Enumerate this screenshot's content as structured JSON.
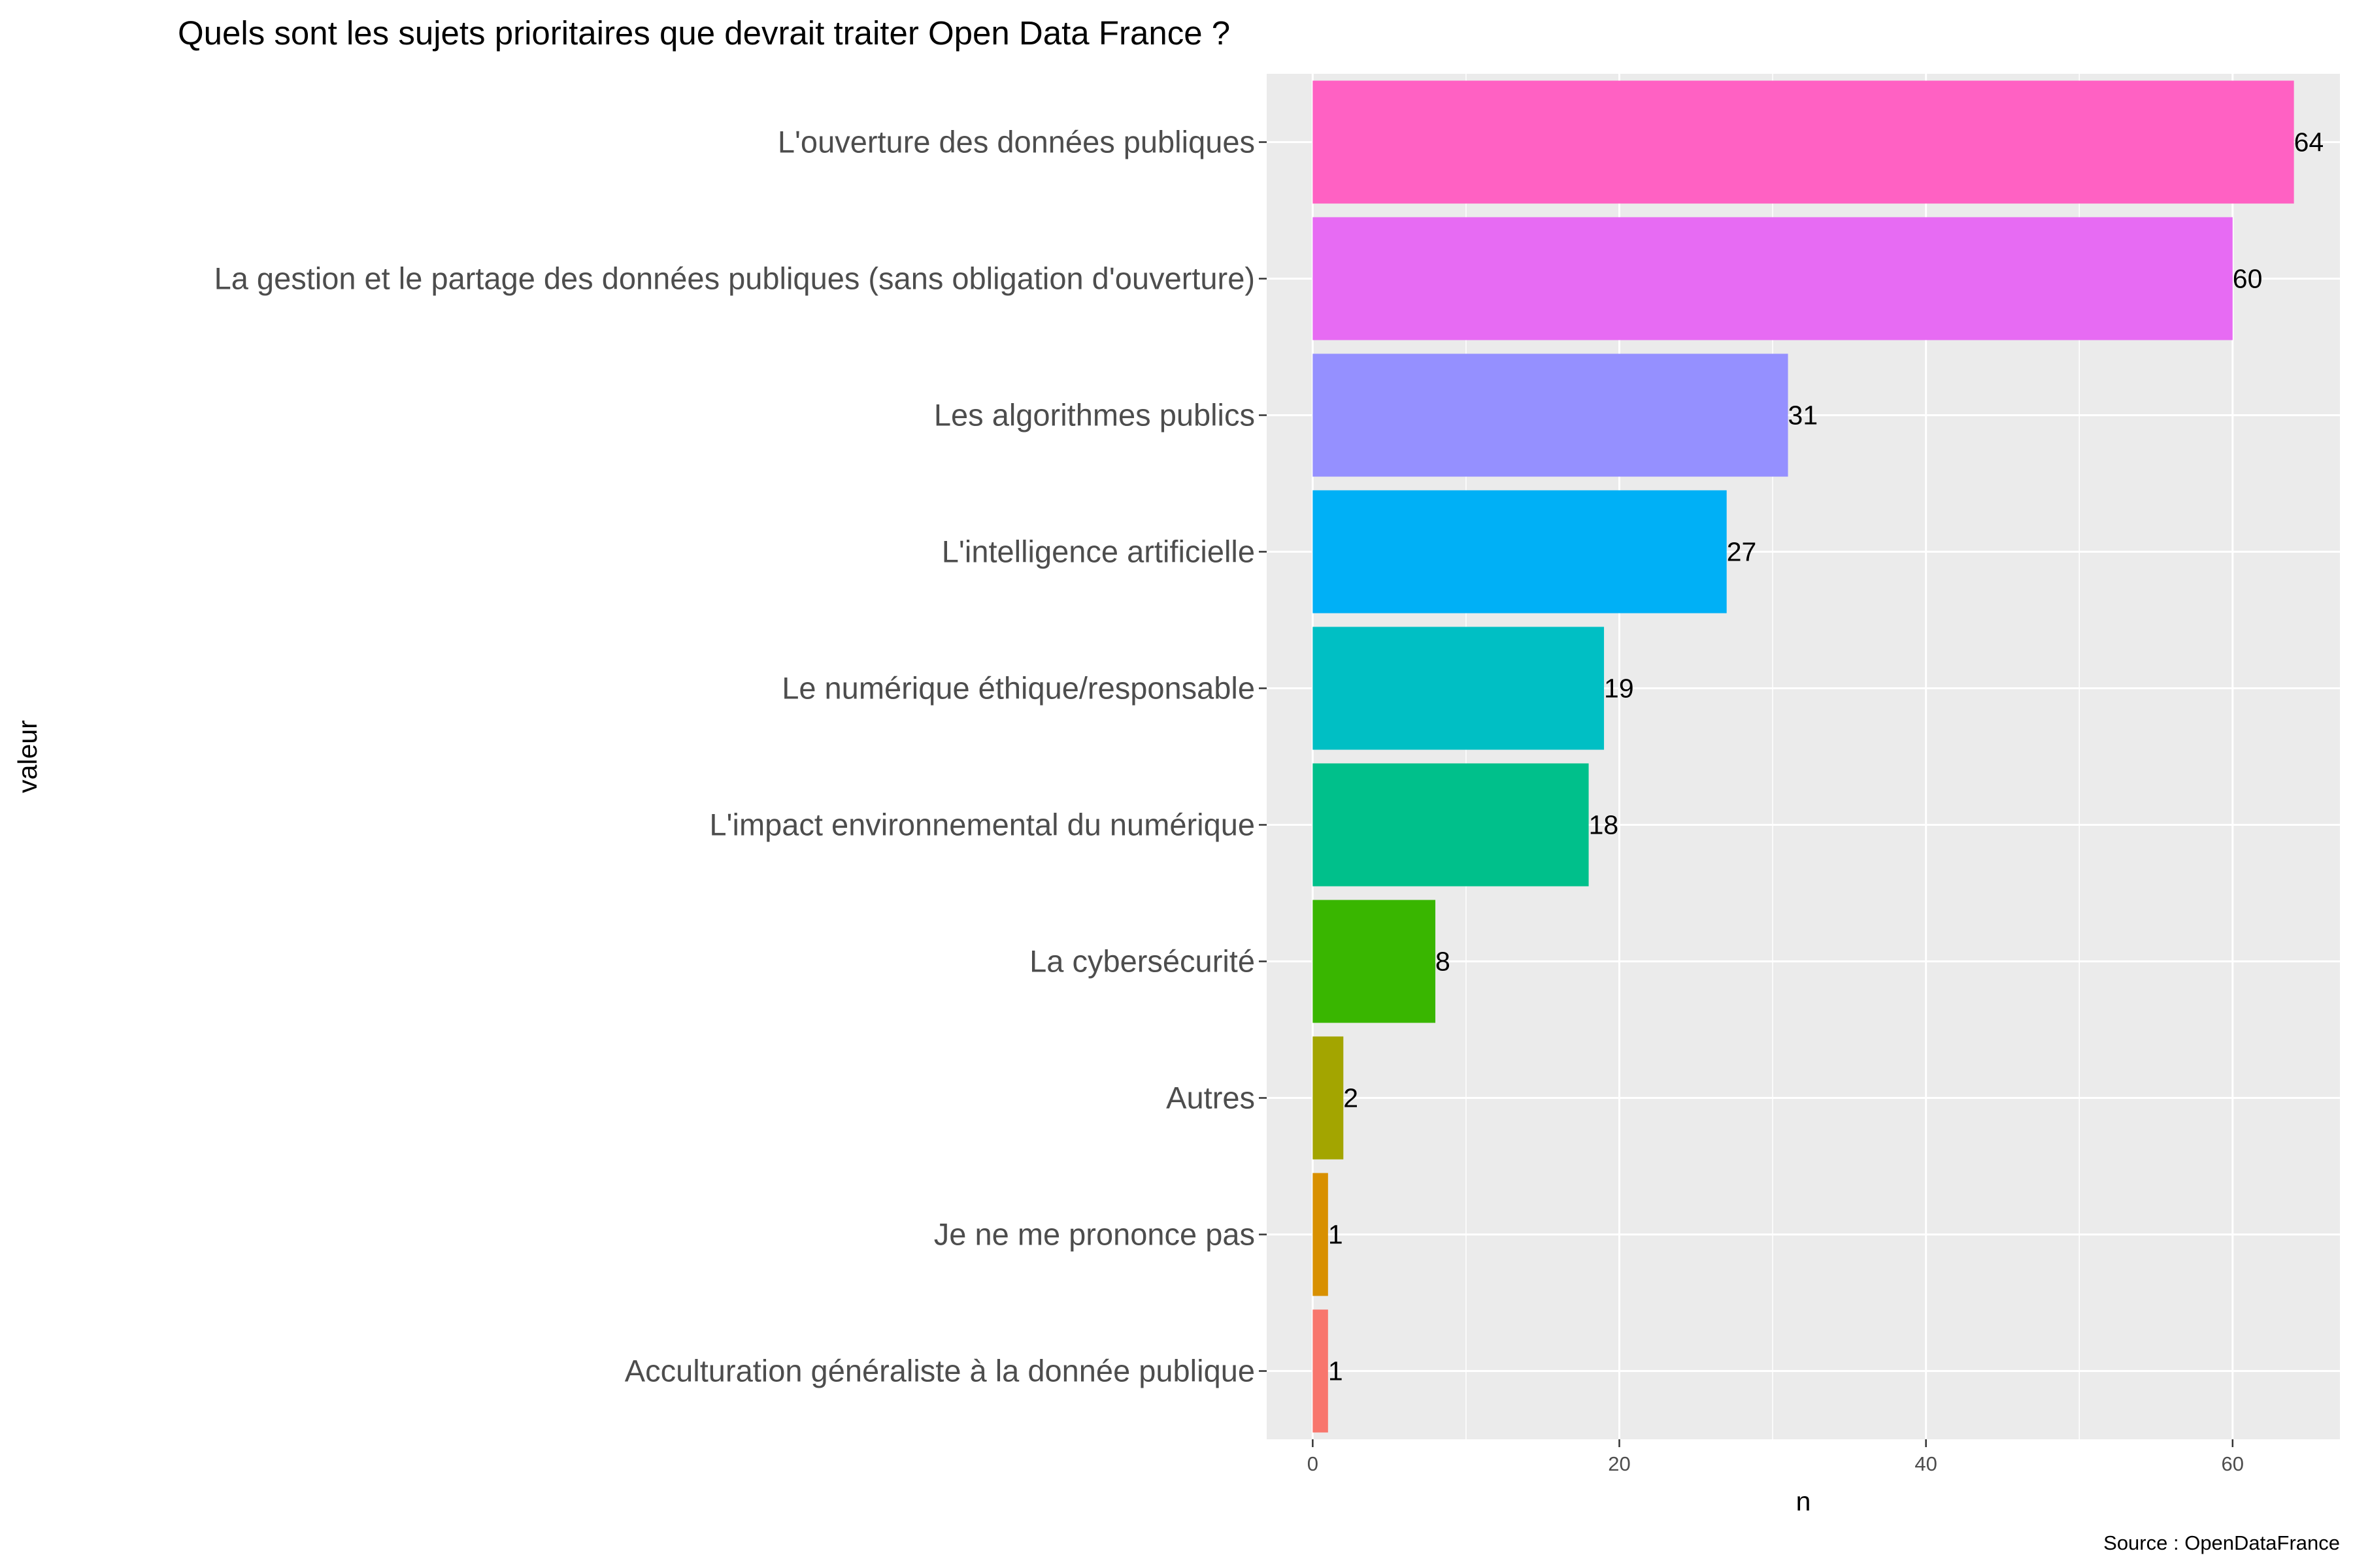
{
  "chart_data": {
    "type": "bar",
    "orientation": "horizontal",
    "title": "Quels sont les sujets prioritaires que devrait traiter Open Data France ?",
    "xlabel": "n",
    "ylabel": "valeur",
    "caption": "Source : OpenDataFrance",
    "xlim": [
      -3,
      67
    ],
    "xticks": [
      0,
      20,
      40,
      60
    ],
    "grid": true,
    "legend": "none",
    "categories": [
      "L'ouverture des données publiques",
      "La gestion et le partage des données publiques (sans obligation d'ouverture)",
      "Les algorithmes publics",
      "L'intelligence artificielle",
      "Le numérique éthique/responsable",
      "L'impact environnemental du numérique",
      "La cybersécurité",
      "Autres",
      "Je ne me prononce pas",
      "Acculturation généraliste à la donnée publique"
    ],
    "values": [
      64,
      60,
      31,
      27,
      19,
      18,
      8,
      2,
      1,
      1
    ],
    "colors": [
      "#FF61C3",
      "#E76BF3",
      "#9590FF",
      "#00B0F6",
      "#00BFC4",
      "#00C08B",
      "#39B600",
      "#A3A500",
      "#D89000",
      "#F8766D"
    ],
    "panel_background": "#EBEBEB",
    "grid_color": "#FFFFFF"
  }
}
